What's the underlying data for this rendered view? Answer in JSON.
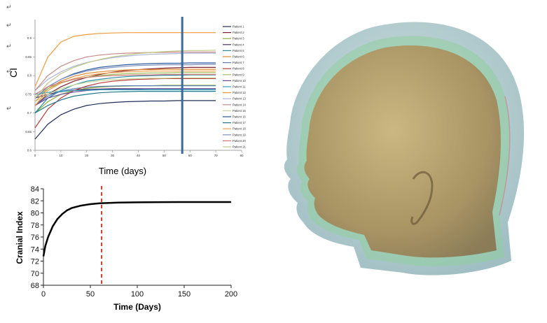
{
  "paragraph_marks": [
    "↵",
    "↵",
    "↵",
    "↵",
    "↵"
  ],
  "colors": {
    "series": [
      "#1f2d5a",
      "#7b2232",
      "#8fae3c",
      "#4a2f6b",
      "#2a8aa0",
      "#e08a2c",
      "#5b7fb8",
      "#b83a3a",
      "#9fbf5a",
      "#6a4a9a",
      "#33a0c0",
      "#f09a3a",
      "#a9b6d6",
      "#c98b8b",
      "#c8d89a",
      "#2b5a9e",
      "#1f7a8c",
      "#f5a050",
      "#8090c0",
      "#d07a7a",
      "#c0c88a"
    ],
    "marker_line": "#3a6a9a",
    "cranial_line": "#000000",
    "cranial_marker": "#d33a2a",
    "head_outer": "#a9c8cc",
    "head_mid": "#8fcf9f",
    "head_inner": "#b59a66"
  },
  "chart_data": [
    {
      "type": "line",
      "title": "",
      "xlabel": "Time (days)",
      "ylabel": "CI",
      "xlim": [
        0,
        80
      ],
      "ylim": [
        0.6,
        0.95
      ],
      "xticks": [
        "0",
        "10",
        "20",
        "30",
        "40",
        "50",
        "60",
        "70",
        "80"
      ],
      "yticks": [
        "0.6",
        "0.65",
        "0.7",
        "0.75",
        "0.8",
        "0.85",
        "0.9"
      ],
      "grid": false,
      "legend": "right",
      "marker_x": 57,
      "x": [
        0,
        5,
        10,
        15,
        20,
        25,
        30,
        35,
        40,
        45,
        50,
        55,
        60,
        65,
        70
      ],
      "series": [
        {
          "name": "Patient 1",
          "values": [
            0.63,
            0.67,
            0.695,
            0.71,
            0.72,
            0.725,
            0.728,
            0.73,
            0.731,
            0.732,
            0.732,
            0.733,
            0.733,
            0.733,
            0.733
          ]
        },
        {
          "name": "Patient 2",
          "values": [
            0.72,
            0.75,
            0.77,
            0.785,
            0.795,
            0.803,
            0.809,
            0.813,
            0.816,
            0.818,
            0.82,
            0.821,
            0.822,
            0.822,
            0.822
          ]
        },
        {
          "name": "Patient 3",
          "values": [
            0.7,
            0.73,
            0.75,
            0.76,
            0.766,
            0.769,
            0.771,
            0.772,
            0.773,
            0.773,
            0.774,
            0.774,
            0.774,
            0.774,
            0.774
          ]
        },
        {
          "name": "Patient 4",
          "values": [
            0.74,
            0.75,
            0.757,
            0.761,
            0.763,
            0.764,
            0.765,
            0.765,
            0.765,
            0.765,
            0.765,
            0.765,
            0.765,
            0.765,
            0.765
          ]
        },
        {
          "name": "Patient 5",
          "values": [
            0.7,
            0.74,
            0.76,
            0.775,
            0.785,
            0.79,
            0.794,
            0.797,
            0.799,
            0.8,
            0.801,
            0.801,
            0.802,
            0.802,
            0.802
          ]
        },
        {
          "name": "Patient 6",
          "values": [
            0.73,
            0.765,
            0.785,
            0.798,
            0.806,
            0.81,
            0.813,
            0.815,
            0.816,
            0.816,
            0.817,
            0.817,
            0.817,
            0.817,
            0.817
          ]
        },
        {
          "name": "Patient 7",
          "values": [
            0.72,
            0.745,
            0.758,
            0.765,
            0.769,
            0.771,
            0.772,
            0.773,
            0.773,
            0.773,
            0.773,
            0.773,
            0.773,
            0.773,
            0.773
          ]
        },
        {
          "name": "Patient 8",
          "values": [
            0.66,
            0.71,
            0.74,
            0.76,
            0.772,
            0.78,
            0.785,
            0.788,
            0.79,
            0.791,
            0.792,
            0.792,
            0.792,
            0.792,
            0.792
          ]
        },
        {
          "name": "Patient 9",
          "values": [
            0.74,
            0.765,
            0.78,
            0.79,
            0.796,
            0.8,
            0.803,
            0.805,
            0.806,
            0.807,
            0.807,
            0.808,
            0.808,
            0.808,
            0.808
          ]
        },
        {
          "name": "Patient 10",
          "values": [
            0.72,
            0.74,
            0.75,
            0.756,
            0.76,
            0.762,
            0.763,
            0.764,
            0.764,
            0.765,
            0.765,
            0.765,
            0.765,
            0.765,
            0.765
          ]
        },
        {
          "name": "Patient 11",
          "values": [
            0.75,
            0.755,
            0.758,
            0.76,
            0.761,
            0.762,
            0.762,
            0.762,
            0.762,
            0.762,
            0.762,
            0.762,
            0.762,
            0.762,
            0.762
          ]
        },
        {
          "name": "Patient 12",
          "values": [
            0.77,
            0.85,
            0.89,
            0.905,
            0.91,
            0.913,
            0.914,
            0.915,
            0.915,
            0.915,
            0.915,
            0.915,
            0.915,
            0.915,
            0.915
          ]
        },
        {
          "name": "Patient 13",
          "values": [
            0.76,
            0.79,
            0.81,
            0.825,
            0.835,
            0.842,
            0.848,
            0.852,
            0.855,
            0.857,
            0.858,
            0.859,
            0.86,
            0.86,
            0.86
          ]
        },
        {
          "name": "Patient 14",
          "values": [
            0.76,
            0.8,
            0.825,
            0.84,
            0.85,
            0.855,
            0.858,
            0.86,
            0.861,
            0.862,
            0.862,
            0.863,
            0.863,
            0.863,
            0.863
          ]
        },
        {
          "name": "Patient 15",
          "values": [
            0.73,
            0.75,
            0.765,
            0.775,
            0.782,
            0.786,
            0.789,
            0.791,
            0.792,
            0.793,
            0.793,
            0.794,
            0.794,
            0.794,
            0.794
          ]
        },
        {
          "name": "Patient 16",
          "values": [
            0.74,
            0.77,
            0.79,
            0.805,
            0.815,
            0.822,
            0.826,
            0.829,
            0.831,
            0.832,
            0.833,
            0.833,
            0.834,
            0.834,
            0.834
          ]
        },
        {
          "name": "Patient 17",
          "values": [
            0.7,
            0.72,
            0.735,
            0.745,
            0.75,
            0.754,
            0.756,
            0.757,
            0.758,
            0.758,
            0.758,
            0.758,
            0.758,
            0.758,
            0.758
          ]
        },
        {
          "name": "Patient 18",
          "values": [
            0.72,
            0.76,
            0.78,
            0.792,
            0.8,
            0.805,
            0.808,
            0.81,
            0.811,
            0.812,
            0.812,
            0.812,
            0.812,
            0.812,
            0.812
          ]
        },
        {
          "name": "Patient 19",
          "values": [
            0.74,
            0.77,
            0.79,
            0.803,
            0.812,
            0.818,
            0.822,
            0.825,
            0.827,
            0.828,
            0.829,
            0.829,
            0.829,
            0.83,
            0.83
          ]
        },
        {
          "name": "Patient 20",
          "values": [
            0.75,
            0.77,
            0.782,
            0.79,
            0.795,
            0.798,
            0.8,
            0.801,
            0.802,
            0.802,
            0.803,
            0.803,
            0.803,
            0.803,
            0.803
          ]
        },
        {
          "name": "Patient 21",
          "values": [
            0.74,
            0.78,
            0.805,
            0.822,
            0.834,
            0.843,
            0.85,
            0.855,
            0.859,
            0.862,
            0.864,
            0.866,
            0.867,
            0.867,
            0.868
          ]
        }
      ]
    },
    {
      "type": "line",
      "title": "",
      "xlabel": "Time (Days)",
      "ylabel": "Cranial Index",
      "xlim": [
        0,
        200
      ],
      "ylim": [
        68,
        84
      ],
      "xticks": [
        "0",
        "50",
        "100",
        "150",
        "200"
      ],
      "yticks": [
        "68",
        "70",
        "72",
        "74",
        "76",
        "78",
        "80",
        "82",
        "84"
      ],
      "grid": false,
      "marker_x": 62,
      "x": [
        0,
        2,
        5,
        10,
        15,
        20,
        25,
        30,
        40,
        50,
        60,
        70,
        80,
        100,
        125,
        150,
        175,
        200
      ],
      "series": [
        {
          "values": [
            72.8,
            74.5,
            76.0,
            77.8,
            79.0,
            79.8,
            80.4,
            80.8,
            81.2,
            81.45,
            81.6,
            81.65,
            81.7,
            81.75,
            81.78,
            81.8,
            81.8,
            81.8
          ]
        }
      ]
    }
  ]
}
